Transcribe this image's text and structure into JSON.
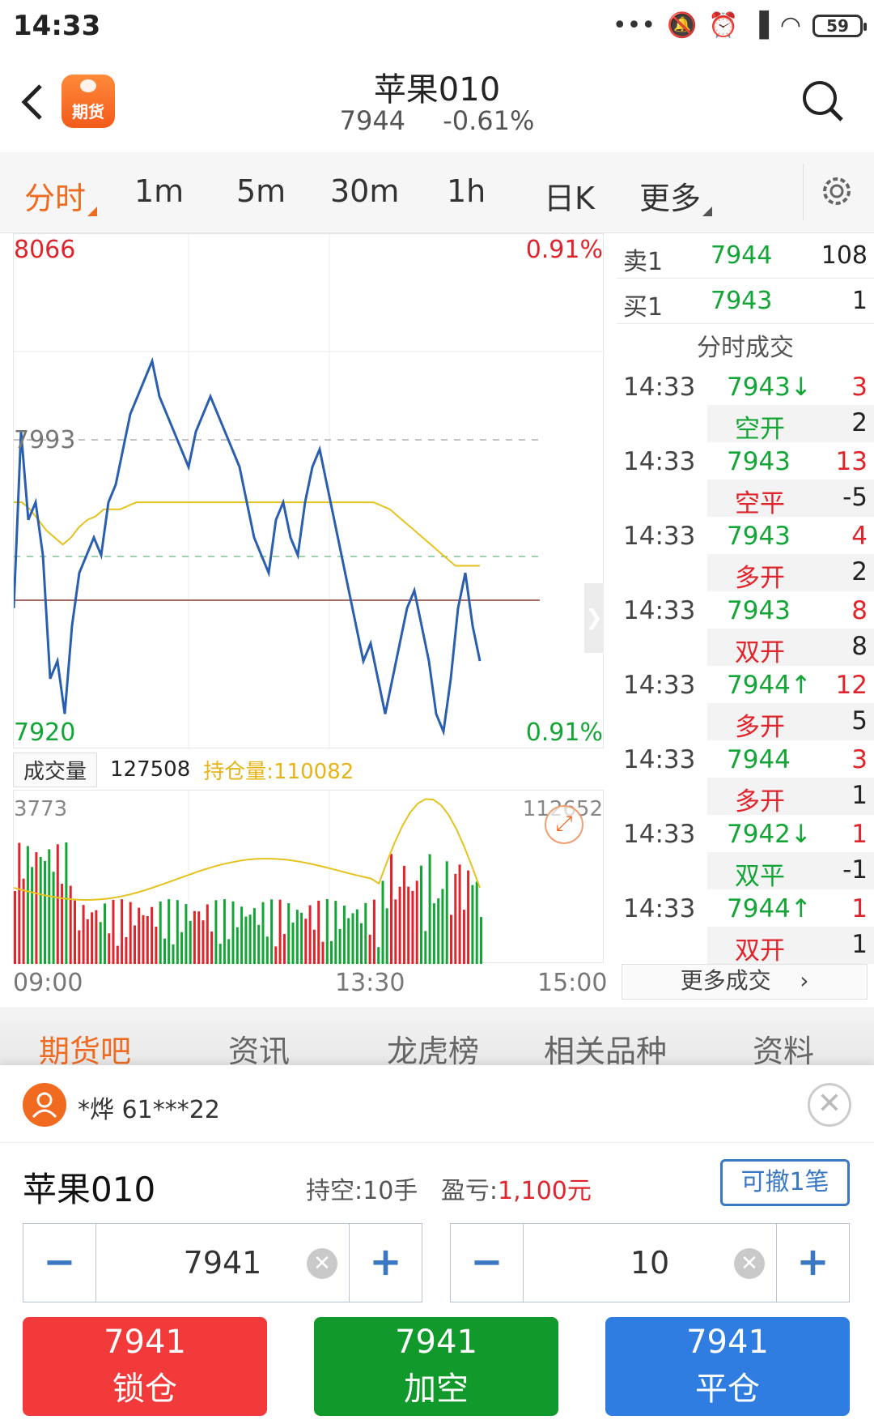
{
  "status": {
    "time": "14:33",
    "battery": "59"
  },
  "header": {
    "logo_text": "期货",
    "title": "苹果010",
    "price": "7944",
    "change": "-0.61%"
  },
  "periods": {
    "items": [
      "分时",
      "1m",
      "5m",
      "30m",
      "1h",
      "日K",
      "更多"
    ],
    "active": "分时"
  },
  "chart": {
    "top_price": "8066",
    "top_pct": "0.91%",
    "mid_price": "7993",
    "bottom_price": "7920",
    "bottom_pct": "0.91%",
    "vol_tag": "成交量",
    "volume": "127508",
    "open_interest": "持仓量:110082",
    "vol_max": "3773",
    "oi_max": "112652",
    "times": [
      "09:00",
      "13:30",
      "15:00"
    ],
    "colors": {
      "price_line": "#2a5fb0",
      "avg_line": "#e6c21e",
      "up": "#e0242b",
      "down": "#13a536"
    }
  },
  "chart_data": {
    "type": "line",
    "title": "",
    "xlabel": "",
    "ylabel": "",
    "ylim": [
      7920,
      8066
    ],
    "reference_price": 7993,
    "series": [
      {
        "values": [
          7960,
          8010,
          7985,
          7990,
          7975,
          7940,
          7945,
          7930,
          7955,
          7970,
          7975,
          7980,
          7975,
          7990,
          7995,
          8005,
          8015,
          8020,
          8025,
          8030,
          8020,
          8015,
          8010,
          8005,
          8000,
          8010,
          8015,
          8020,
          8015,
          8010,
          8005,
          8000,
          7990,
          7980,
          7975,
          7970,
          7985,
          7990,
          7980,
          7975,
          7990,
          8000,
          8005,
          7995,
          7985,
          7975,
          7965,
          7955,
          7945,
          7950,
          7940,
          7930,
          7940,
          7950,
          7960,
          7965,
          7955,
          7945,
          7930,
          7925,
          7940,
          7960,
          7970,
          7955,
          7945
        ]
      },
      {
        "values": [
          7990,
          7990,
          7988,
          7985,
          7982,
          7980,
          7978,
          7980,
          7983,
          7985,
          7986,
          7988,
          7988,
          7988,
          7989,
          7990,
          7990,
          7990,
          7990,
          7990,
          7990,
          7990,
          7990,
          7990,
          7990,
          7990,
          7990,
          7990,
          7990,
          7990,
          7990,
          7990,
          7990,
          7990,
          7990,
          7990,
          7990,
          7990,
          7990,
          7990,
          7990,
          7990,
          7990,
          7990,
          7990,
          7989,
          7988,
          7986,
          7984,
          7982,
          7980,
          7978,
          7976,
          7974,
          7972,
          7972,
          7972,
          7972
        ]
      }
    ],
    "volume_max": 3773,
    "open_interest_max": 112652
  },
  "orderbook": {
    "ask": {
      "label": "卖1",
      "price": "7944",
      "qty": "108"
    },
    "bid": {
      "label": "买1",
      "price": "7943",
      "qty": "1"
    }
  },
  "trades_title": "分时成交",
  "trades": [
    {
      "time": "14:33",
      "price": "7943↓",
      "qty": "3",
      "kind": "空开",
      "delta": "2"
    },
    {
      "time": "14:33",
      "price": "7943",
      "qty": "13",
      "kind": "空平",
      "delta": "-5"
    },
    {
      "time": "14:33",
      "price": "7943",
      "qty": "4",
      "kind": "多开",
      "delta": "2"
    },
    {
      "time": "14:33",
      "price": "7943",
      "qty": "8",
      "kind": "双开",
      "delta": "8"
    },
    {
      "time": "14:33",
      "price": "7944↑",
      "qty": "12",
      "kind": "多开",
      "delta": "5"
    },
    {
      "time": "14:33",
      "price": "7944",
      "qty": "3",
      "kind": "多开",
      "delta": "1"
    },
    {
      "time": "14:33",
      "price": "7942↓",
      "qty": "1",
      "kind": "双平",
      "delta": "-1"
    },
    {
      "time": "14:33",
      "price": "7944↑",
      "qty": "1",
      "kind": "双开",
      "delta": "1"
    }
  ],
  "more_trades": "更多成交",
  "bottom_tabs": {
    "items": [
      "期货吧",
      "资讯",
      "龙虎榜",
      "相关品种",
      "资料"
    ],
    "active": "期货吧"
  },
  "panel": {
    "user": "*烨  61***22",
    "instrument": "苹果010",
    "position": "持空:10手",
    "pl_label": "盈亏:",
    "pl_value": "1,100元",
    "cancel_label": "可撤1笔",
    "price_value": "7941",
    "qty_value": "10",
    "actions": [
      {
        "price": "7941",
        "label": "锁仓",
        "color": "#f23a3a"
      },
      {
        "price": "7941",
        "label": "加空",
        "color": "#119a2b"
      },
      {
        "price": "7941",
        "label": "平仓",
        "color": "#2f7de0"
      }
    ]
  }
}
